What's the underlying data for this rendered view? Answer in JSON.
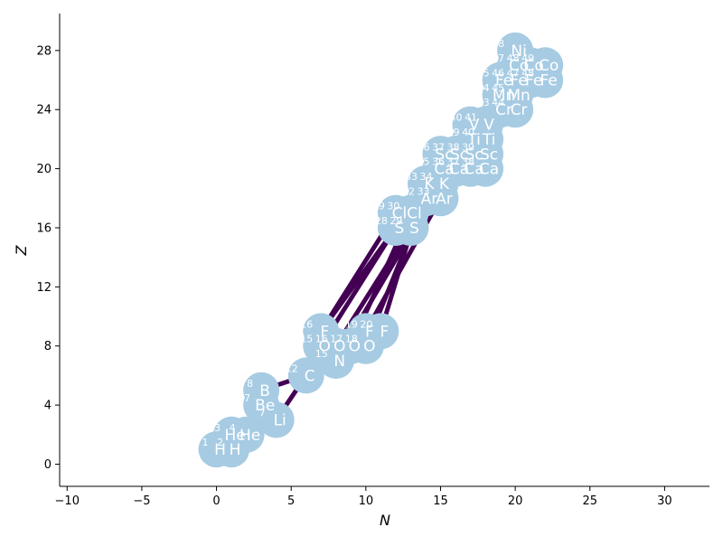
{
  "chart_data": {
    "type": "scatter",
    "title": "",
    "xlabel": "N",
    "ylabel": "Z",
    "xlim": [
      -10.5,
      33
    ],
    "ylim": [
      -1.5,
      30.5
    ],
    "xticks": [
      -10,
      -5,
      0,
      5,
      10,
      15,
      20,
      25,
      30
    ],
    "yticks": [
      0,
      4,
      8,
      12,
      16,
      20,
      24,
      28
    ],
    "grid": false,
    "legend": "none",
    "node_color": "#a6cbe3",
    "edge_color": "#440154",
    "nuclides": [
      {
        "symbol": "H",
        "mass": 1,
        "n": 0,
        "z": 1
      },
      {
        "symbol": "H",
        "mass": 2,
        "n": 1,
        "z": 1
      },
      {
        "symbol": "He",
        "mass": 3,
        "n": 1,
        "z": 2
      },
      {
        "symbol": "He",
        "mass": 4,
        "n": 2,
        "z": 2
      },
      {
        "symbol": "Li",
        "mass": 7,
        "n": 4,
        "z": 3
      },
      {
        "symbol": "Be",
        "mass": 7,
        "n": 3,
        "z": 4
      },
      {
        "symbol": "B",
        "mass": 8,
        "n": 3,
        "z": 5
      },
      {
        "symbol": "C",
        "mass": 12,
        "n": 6,
        "z": 6
      },
      {
        "symbol": "N",
        "mass": 15,
        "n": 8,
        "z": 7
      },
      {
        "symbol": "O",
        "mass": 15,
        "n": 7,
        "z": 8
      },
      {
        "symbol": "O",
        "mass": 16,
        "n": 8,
        "z": 8
      },
      {
        "symbol": "O",
        "mass": 17,
        "n": 9,
        "z": 8
      },
      {
        "symbol": "O",
        "mass": 18,
        "n": 10,
        "z": 8
      },
      {
        "symbol": "F",
        "mass": 16,
        "n": 7,
        "z": 9
      },
      {
        "symbol": "F",
        "mass": 19,
        "n": 10,
        "z": 9
      },
      {
        "symbol": "F",
        "mass": 20,
        "n": 11,
        "z": 9
      },
      {
        "symbol": "S",
        "mass": 28,
        "n": 12,
        "z": 16
      },
      {
        "symbol": "S",
        "mass": 29,
        "n": 13,
        "z": 16
      },
      {
        "symbol": "Cl",
        "mass": 29,
        "n": 12,
        "z": 17
      },
      {
        "symbol": "Cl",
        "mass": 30,
        "n": 13,
        "z": 17
      },
      {
        "symbol": "Ar",
        "mass": 32,
        "n": 14,
        "z": 18
      },
      {
        "symbol": "Ar",
        "mass": 33,
        "n": 15,
        "z": 18
      },
      {
        "symbol": "K",
        "mass": 33,
        "n": 14,
        "z": 19
      },
      {
        "symbol": "K",
        "mass": 34,
        "n": 15,
        "z": 19
      },
      {
        "symbol": "Ca",
        "mass": 35,
        "n": 15,
        "z": 20
      },
      {
        "symbol": "Ca",
        "mass": 36,
        "n": 16,
        "z": 20
      },
      {
        "symbol": "Ca",
        "mass": 37,
        "n": 17,
        "z": 20
      },
      {
        "symbol": "Ca",
        "mass": 38,
        "n": 18,
        "z": 20
      },
      {
        "symbol": "Sc",
        "mass": 36,
        "n": 15,
        "z": 21
      },
      {
        "symbol": "Sc",
        "mass": 37,
        "n": 16,
        "z": 21
      },
      {
        "symbol": "Sc",
        "mass": 38,
        "n": 17,
        "z": 21
      },
      {
        "symbol": "Sc",
        "mass": 39,
        "n": 18,
        "z": 21
      },
      {
        "symbol": "Ti",
        "mass": 39,
        "n": 17,
        "z": 22
      },
      {
        "symbol": "Ti",
        "mass": 40,
        "n": 18,
        "z": 22
      },
      {
        "symbol": "V",
        "mass": 40,
        "n": 17,
        "z": 23
      },
      {
        "symbol": "V",
        "mass": 41,
        "n": 18,
        "z": 23
      },
      {
        "symbol": "Cr",
        "mass": 43,
        "n": 19,
        "z": 24
      },
      {
        "symbol": "Cr",
        "mass": 44,
        "n": 20,
        "z": 24
      },
      {
        "symbol": "Mn",
        "mass": 44,
        "n": 19,
        "z": 25
      },
      {
        "symbol": "Mn",
        "mass": 45,
        "n": 20,
        "z": 25
      },
      {
        "symbol": "Fe",
        "mass": 45,
        "n": 19,
        "z": 26
      },
      {
        "symbol": "Fe",
        "mass": 46,
        "n": 20,
        "z": 26
      },
      {
        "symbol": "Fe",
        "mass": 47,
        "n": 21,
        "z": 26
      },
      {
        "symbol": "Fe",
        "mass": 48,
        "n": 22,
        "z": 26
      },
      {
        "symbol": "Co",
        "mass": 47,
        "n": 20,
        "z": 27
      },
      {
        "symbol": "Co",
        "mass": 48,
        "n": 21,
        "z": 27
      },
      {
        "symbol": "Co",
        "mass": 49,
        "n": 22,
        "z": 27
      },
      {
        "symbol": "Ni",
        "mass": 48,
        "n": 20,
        "z": 28
      }
    ],
    "links": [
      [
        0,
        1
      ],
      [
        1,
        2
      ],
      [
        2,
        3
      ],
      [
        3,
        5
      ],
      [
        3,
        4
      ],
      [
        5,
        6
      ],
      [
        4,
        7
      ],
      [
        6,
        7
      ],
      [
        7,
        9
      ],
      [
        7,
        8
      ],
      [
        9,
        13
      ],
      [
        10,
        13
      ],
      [
        8,
        10
      ],
      [
        10,
        11
      ],
      [
        11,
        12
      ],
      [
        12,
        14
      ],
      [
        14,
        15
      ],
      [
        13,
        16
      ],
      [
        13,
        18
      ],
      [
        9,
        16
      ],
      [
        10,
        17
      ],
      [
        11,
        19
      ],
      [
        12,
        20
      ],
      [
        14,
        21
      ],
      [
        15,
        22
      ],
      [
        8,
        23
      ],
      [
        16,
        17
      ],
      [
        17,
        18
      ],
      [
        18,
        19
      ],
      [
        19,
        20
      ],
      [
        20,
        21
      ],
      [
        21,
        22
      ],
      [
        22,
        23
      ],
      [
        23,
        24
      ],
      [
        24,
        25
      ],
      [
        25,
        26
      ],
      [
        26,
        27
      ],
      [
        24,
        28
      ],
      [
        25,
        29
      ],
      [
        26,
        30
      ],
      [
        27,
        31
      ],
      [
        28,
        29
      ],
      [
        29,
        30
      ],
      [
        30,
        31
      ],
      [
        30,
        32
      ],
      [
        31,
        33
      ],
      [
        32,
        34
      ],
      [
        33,
        35
      ],
      [
        34,
        35
      ],
      [
        35,
        36
      ],
      [
        36,
        37
      ],
      [
        36,
        38
      ],
      [
        37,
        39
      ],
      [
        38,
        40
      ],
      [
        39,
        41
      ],
      [
        40,
        41
      ],
      [
        41,
        42
      ],
      [
        42,
        43
      ],
      [
        41,
        44
      ],
      [
        42,
        45
      ],
      [
        43,
        46
      ],
      [
        44,
        47
      ],
      [
        45,
        46
      ]
    ]
  }
}
